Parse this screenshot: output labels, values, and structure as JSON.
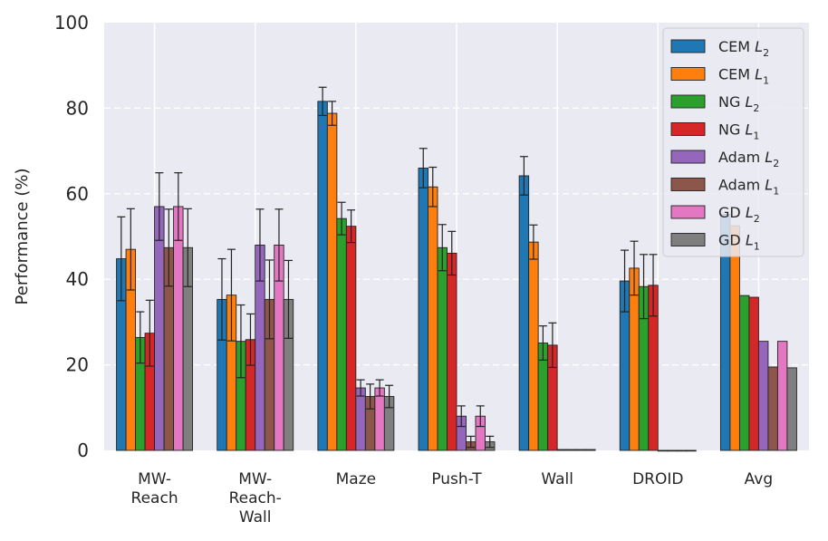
{
  "chart_data": {
    "type": "bar",
    "title": "",
    "xlabel": "",
    "ylabel": "Performance (%)",
    "ylim": [
      0,
      100
    ],
    "yticks": [
      0,
      20,
      40,
      60,
      80,
      100
    ],
    "grid": true,
    "legend_position": "top-right",
    "categories": [
      [
        "MW-",
        "Reach"
      ],
      [
        "MW-",
        "Reach-",
        "Wall"
      ],
      [
        "Maze"
      ],
      [
        "Push-T"
      ],
      [
        "Wall"
      ],
      [
        "DROID"
      ],
      [
        "Avg"
      ]
    ],
    "series": [
      {
        "name": "CEM",
        "sub": "2",
        "color": "#1f77b4",
        "values": [
          44.8,
          35.3,
          81.6,
          66.0,
          64.2,
          39.6,
          55.2
        ],
        "errors": [
          9.8,
          9.5,
          3.3,
          4.6,
          4.5,
          7.2,
          null
        ]
      },
      {
        "name": "CEM",
        "sub": "1",
        "color": "#ff7f0e",
        "values": [
          47.0,
          36.3,
          78.8,
          61.6,
          48.7,
          42.6,
          52.5
        ],
        "errors": [
          9.5,
          10.7,
          2.8,
          4.6,
          4.0,
          6.3,
          null
        ]
      },
      {
        "name": "NG",
        "sub": "2",
        "color": "#2ca02c",
        "values": [
          26.4,
          25.5,
          54.2,
          47.4,
          25.1,
          38.3,
          36.2
        ],
        "errors": [
          6.0,
          8.5,
          3.8,
          5.4,
          4.0,
          7.5,
          null
        ]
      },
      {
        "name": "NG",
        "sub": "1",
        "color": "#d62728",
        "values": [
          27.4,
          25.9,
          52.4,
          46.1,
          24.6,
          38.6,
          35.8
        ],
        "errors": [
          7.7,
          6.0,
          3.8,
          5.1,
          5.2,
          7.2,
          null
        ]
      },
      {
        "name": "Adam",
        "sub": "2",
        "color": "#9467bd",
        "values": [
          57.0,
          48.0,
          14.6,
          8.0,
          0.2,
          0,
          25.5
        ],
        "errors": [
          7.9,
          8.4,
          1.9,
          2.4,
          0,
          0,
          null
        ]
      },
      {
        "name": "Adam",
        "sub": "1",
        "color": "#8c564b",
        "values": [
          47.4,
          35.3,
          12.6,
          2.0,
          0.2,
          0,
          19.5
        ],
        "errors": [
          9.0,
          9.2,
          2.9,
          1.3,
          0,
          0,
          null
        ]
      },
      {
        "name": "GD",
        "sub": "2",
        "color": "#e377c2",
        "values": [
          57.0,
          48.0,
          14.6,
          8.0,
          0.2,
          0,
          25.5
        ],
        "errors": [
          7.9,
          8.4,
          1.9,
          2.4,
          0,
          0,
          null
        ]
      },
      {
        "name": "GD",
        "sub": "1",
        "color": "#7f7f7f",
        "values": [
          47.4,
          35.3,
          12.6,
          2.0,
          0.2,
          0,
          19.3
        ],
        "errors": [
          9.1,
          9.1,
          2.6,
          1.3,
          0,
          0,
          null
        ]
      }
    ]
  }
}
